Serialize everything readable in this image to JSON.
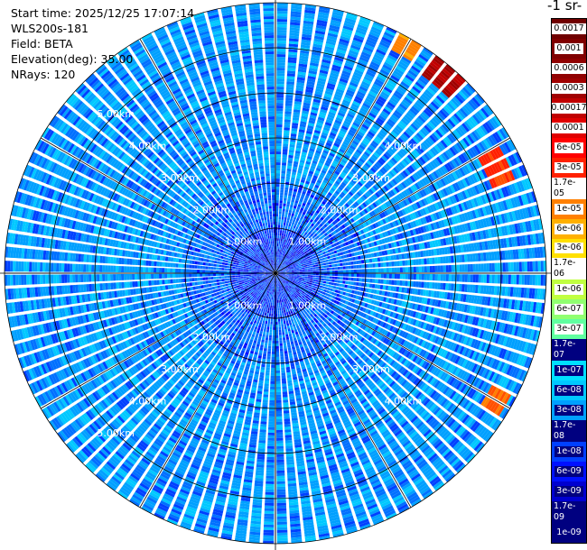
{
  "header": {
    "start_time": "Start time: 2025/12/25 17:07:14",
    "instrument": "WLS200s-181",
    "field": "Field: BETA",
    "elevation": "Elevation(deg): 35.00",
    "nrays": "NRays: 120"
  },
  "colorbar": {
    "title_fragment": "-1 sr-",
    "labels": [
      "1e-09",
      "1.7e-09",
      "3e-09",
      "6e-09",
      "1e-08",
      "1.7e-08",
      "3e-08",
      "6e-08",
      "1e-07",
      "1.7e-07",
      "3e-07",
      "6e-07",
      "1e-06",
      "1.7e-06",
      "3e-06",
      "6e-06",
      "1e-05",
      "1.7e-05",
      "3e-05",
      "6e-05",
      "0.0001",
      "0.00017",
      "0.0003",
      "0.0006",
      "0.001",
      "0.0017"
    ],
    "colors": [
      "#000080",
      "#0000a8",
      "#0000d0",
      "#0010ff",
      "#0040ff",
      "#0070ff",
      "#00a0ff",
      "#00c8ff",
      "#00e0ff",
      "#20ffe0",
      "#60ffa0",
      "#90ff70",
      "#c0ff40",
      "#e8ff10",
      "#ffe000",
      "#ffb000",
      "#ff8000",
      "#ff5000",
      "#ff2000",
      "#ff0000",
      "#e00000",
      "#c00000",
      "#a00000",
      "#900000",
      "#800000",
      "#700000"
    ]
  },
  "chart_data": {
    "type": "heatmap",
    "projection": "polar PPI",
    "variable": "BETA",
    "elevation_deg": 35.0,
    "n_rays": 120,
    "max_range_km": 6.0,
    "range_ring_labels": [
      "1.00km",
      "2.00km",
      "3.00km",
      "4.00km",
      "5.00km"
    ],
    "range_rings_km": [
      1,
      2,
      3,
      4,
      5
    ],
    "scale": "log",
    "value_range": [
      1e-09,
      0.0017
    ],
    "dominant_values_by_range": [
      {
        "range_km": 0.5,
        "value": 1e-08
      },
      {
        "range_km": 1.5,
        "value": 1.7e-08
      },
      {
        "range_km": 2.5,
        "value": 3e-08
      },
      {
        "range_km": 3.5,
        "value": 3e-08
      },
      {
        "range_km": 4.5,
        "value": 3e-08
      },
      {
        "range_km": 5.5,
        "value": 3e-08
      }
    ],
    "high_return_sectors": [
      {
        "azimuth_deg": 30,
        "range_km": 5.8,
        "value": 1e-05
      },
      {
        "azimuth_deg": 40,
        "range_km": 5.7,
        "value": 0.0003
      },
      {
        "azimuth_deg": 65,
        "range_km": 5.4,
        "value": 3e-05
      },
      {
        "azimuth_deg": 120,
        "range_km": 5.6,
        "value": 1.7e-05
      }
    ]
  }
}
